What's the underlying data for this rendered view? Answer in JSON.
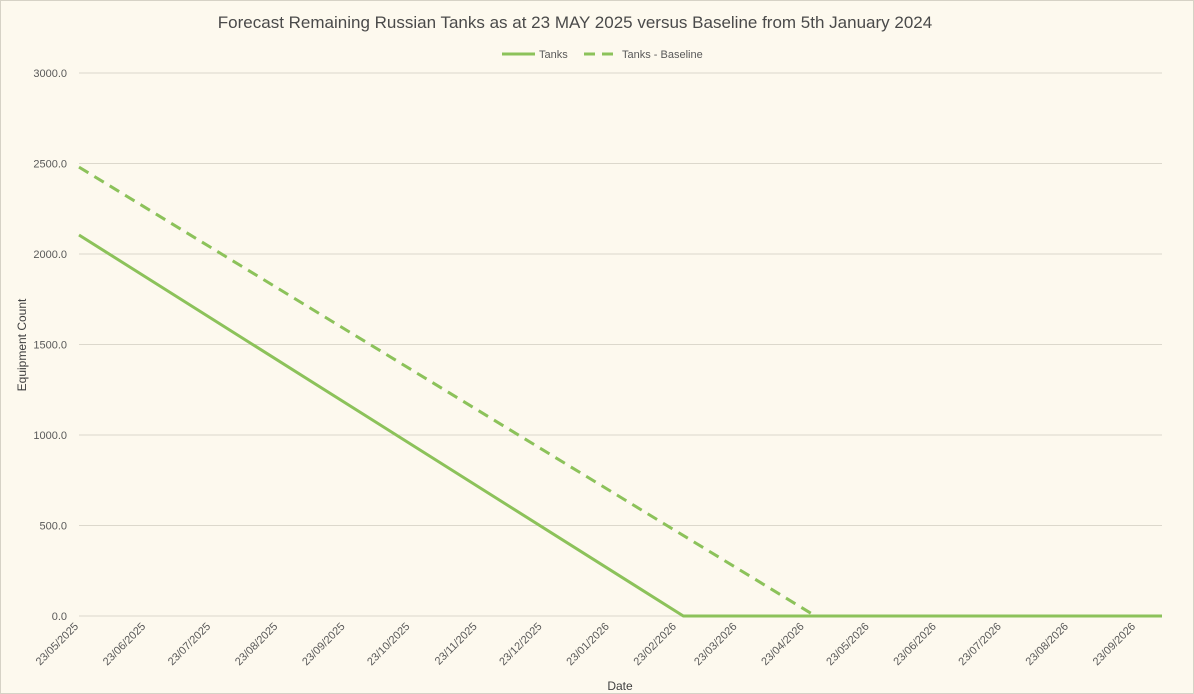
{
  "chart_data": {
    "type": "line",
    "title": "Forecast Remaining Russian Tanks as at 23 MAY 2025 versus Baseline from 5th January 2024",
    "xlabel": "Date",
    "ylabel": "Equipment Count",
    "x_range": [
      "2025-05-23",
      "2026-10-05"
    ],
    "ylim": [
      0,
      3000
    ],
    "y_ticks": [
      "0.0",
      "500.0",
      "1000.0",
      "1500.0",
      "2000.0",
      "2500.0",
      "3000.0"
    ],
    "x_ticks": [
      {
        "date": "2025-05-23",
        "label": "23/05/2025"
      },
      {
        "date": "2025-06-23",
        "label": "23/06/2025"
      },
      {
        "date": "2025-07-23",
        "label": "23/07/2025"
      },
      {
        "date": "2025-08-23",
        "label": "23/08/2025"
      },
      {
        "date": "2025-09-23",
        "label": "23/09/2025"
      },
      {
        "date": "2025-10-23",
        "label": "23/10/2025"
      },
      {
        "date": "2025-11-23",
        "label": "23/11/2025"
      },
      {
        "date": "2025-12-23",
        "label": "23/12/2025"
      },
      {
        "date": "2026-01-23",
        "label": "23/01/2026"
      },
      {
        "date": "2026-02-23",
        "label": "23/02/2026"
      },
      {
        "date": "2026-03-23",
        "label": "23/03/2026"
      },
      {
        "date": "2026-04-23",
        "label": "23/04/2026"
      },
      {
        "date": "2026-05-23",
        "label": "23/05/2026"
      },
      {
        "date": "2026-06-23",
        "label": "23/06/2026"
      },
      {
        "date": "2026-07-23",
        "label": "23/07/2026"
      },
      {
        "date": "2026-08-23",
        "label": "23/08/2026"
      },
      {
        "date": "2026-09-23",
        "label": "23/09/2026"
      }
    ],
    "grid": true,
    "legend_position": "top-center",
    "series": [
      {
        "name": "Tanks",
        "style": "solid",
        "color": "#8cc25a",
        "points": [
          {
            "x": "2025-05-23",
            "y": 2105
          },
          {
            "x": "2026-02-26",
            "y": 0
          },
          {
            "x": "2026-10-05",
            "y": 0
          }
        ]
      },
      {
        "name": "Tanks - Baseline",
        "style": "dashed",
        "color": "#8cc25a",
        "points": [
          {
            "x": "2025-05-23",
            "y": 2480
          },
          {
            "x": "2026-04-28",
            "y": 0
          },
          {
            "x": "2026-10-05",
            "y": 0
          }
        ]
      }
    ]
  }
}
